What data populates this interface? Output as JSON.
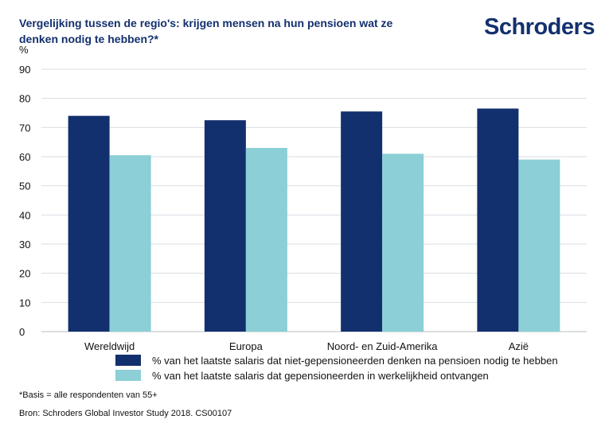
{
  "header": {
    "title": "Vergelijking tussen de regio's: krijgen mensen na hun pensioen wat ze denken nodig te hebben?*",
    "logo_text": "Schroders"
  },
  "colors": {
    "brand": "#13306e",
    "series1": "#13306e",
    "series2": "#8ccfd6",
    "grid": "#d9dde2"
  },
  "chart_data": {
    "type": "bar",
    "title": "Vergelijking tussen de regio's: krijgen mensen na hun pensioen wat ze denken nodig te hebben?*",
    "xlabel": "",
    "ylabel": "%",
    "ylim": [
      0,
      90
    ],
    "yticks": [
      0,
      10,
      20,
      30,
      40,
      50,
      60,
      70,
      80,
      90
    ],
    "grid": true,
    "categories": [
      "Wereldwijd",
      "Europa",
      "Noord- en Zuid-Amerika",
      "Azië"
    ],
    "series": [
      {
        "name": "% van het laatste salaris dat niet-gepensioneerden denken na pensioen nodig te hebben",
        "values": [
          74,
          72.5,
          75.5,
          76.5
        ]
      },
      {
        "name": "% van het laatste salaris dat gepensioneerden in werkelijkheid ontvangen",
        "values": [
          60.5,
          63,
          61,
          59
        ]
      }
    ],
    "legend_position": "bottom"
  },
  "footer": {
    "basis": "*Basis = alle respondenten van 55+",
    "source": "Bron: Schroders Global Investor Study 2018. CS00107"
  }
}
